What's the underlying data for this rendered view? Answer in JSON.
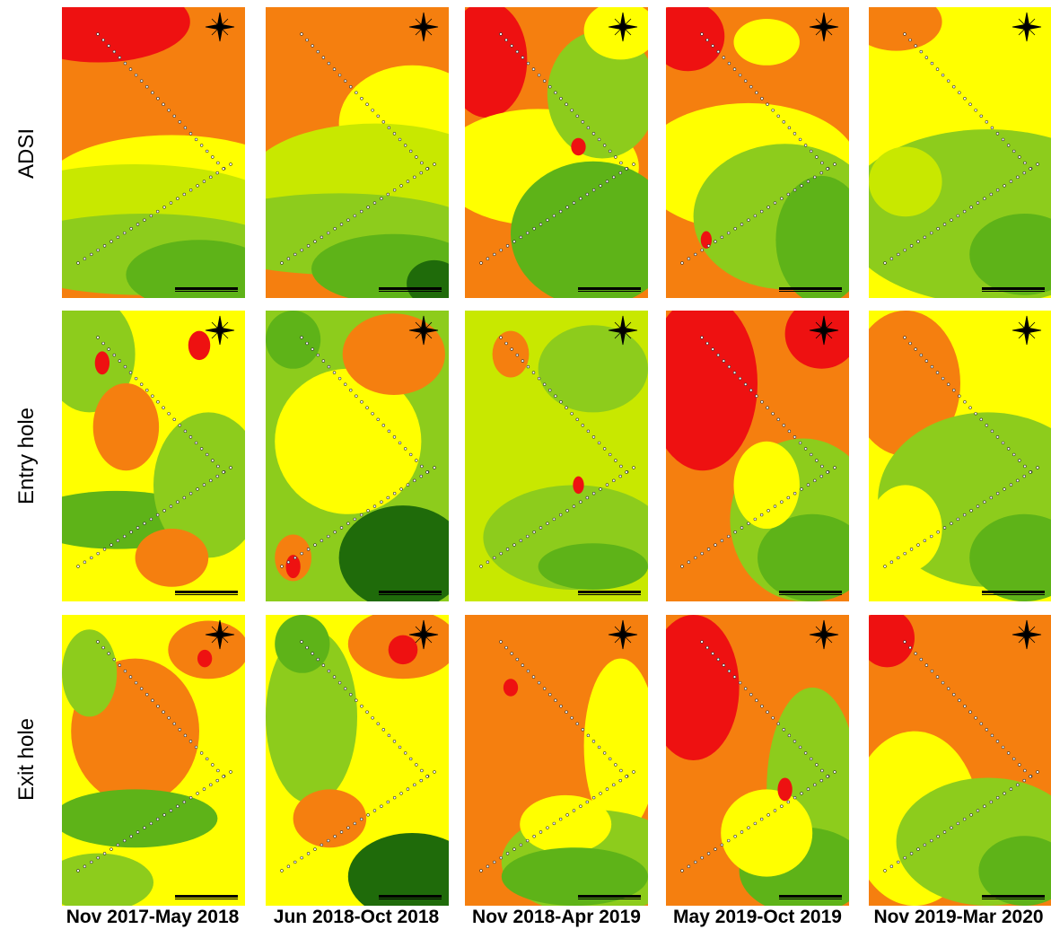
{
  "rows": [
    {
      "label": "ADSI"
    },
    {
      "label": "Entry hole"
    },
    {
      "label": "Exit hole"
    }
  ],
  "columns": [
    {
      "label": "Nov 2017-May  2018"
    },
    {
      "label": "Jun 2018-Oct  2018"
    },
    {
      "label": "Nov 2018-Apr 2019"
    },
    {
      "label": "May 2019-Oct  2019"
    },
    {
      "label": "Nov 2019-Mar  2020"
    }
  ],
  "palette": {
    "red": "#ee1111",
    "orange": "#f57f0f",
    "yellow": "#ffff00",
    "lime": "#c8e800",
    "lightgreen": "#8dcc1c",
    "green": "#5eb318",
    "darkgreen": "#3a9a0d",
    "forest": "#1f6b0a"
  },
  "icons": {
    "north_arrow": "compass-rose-icon",
    "scale_bar": "scale-bar-icon"
  }
}
